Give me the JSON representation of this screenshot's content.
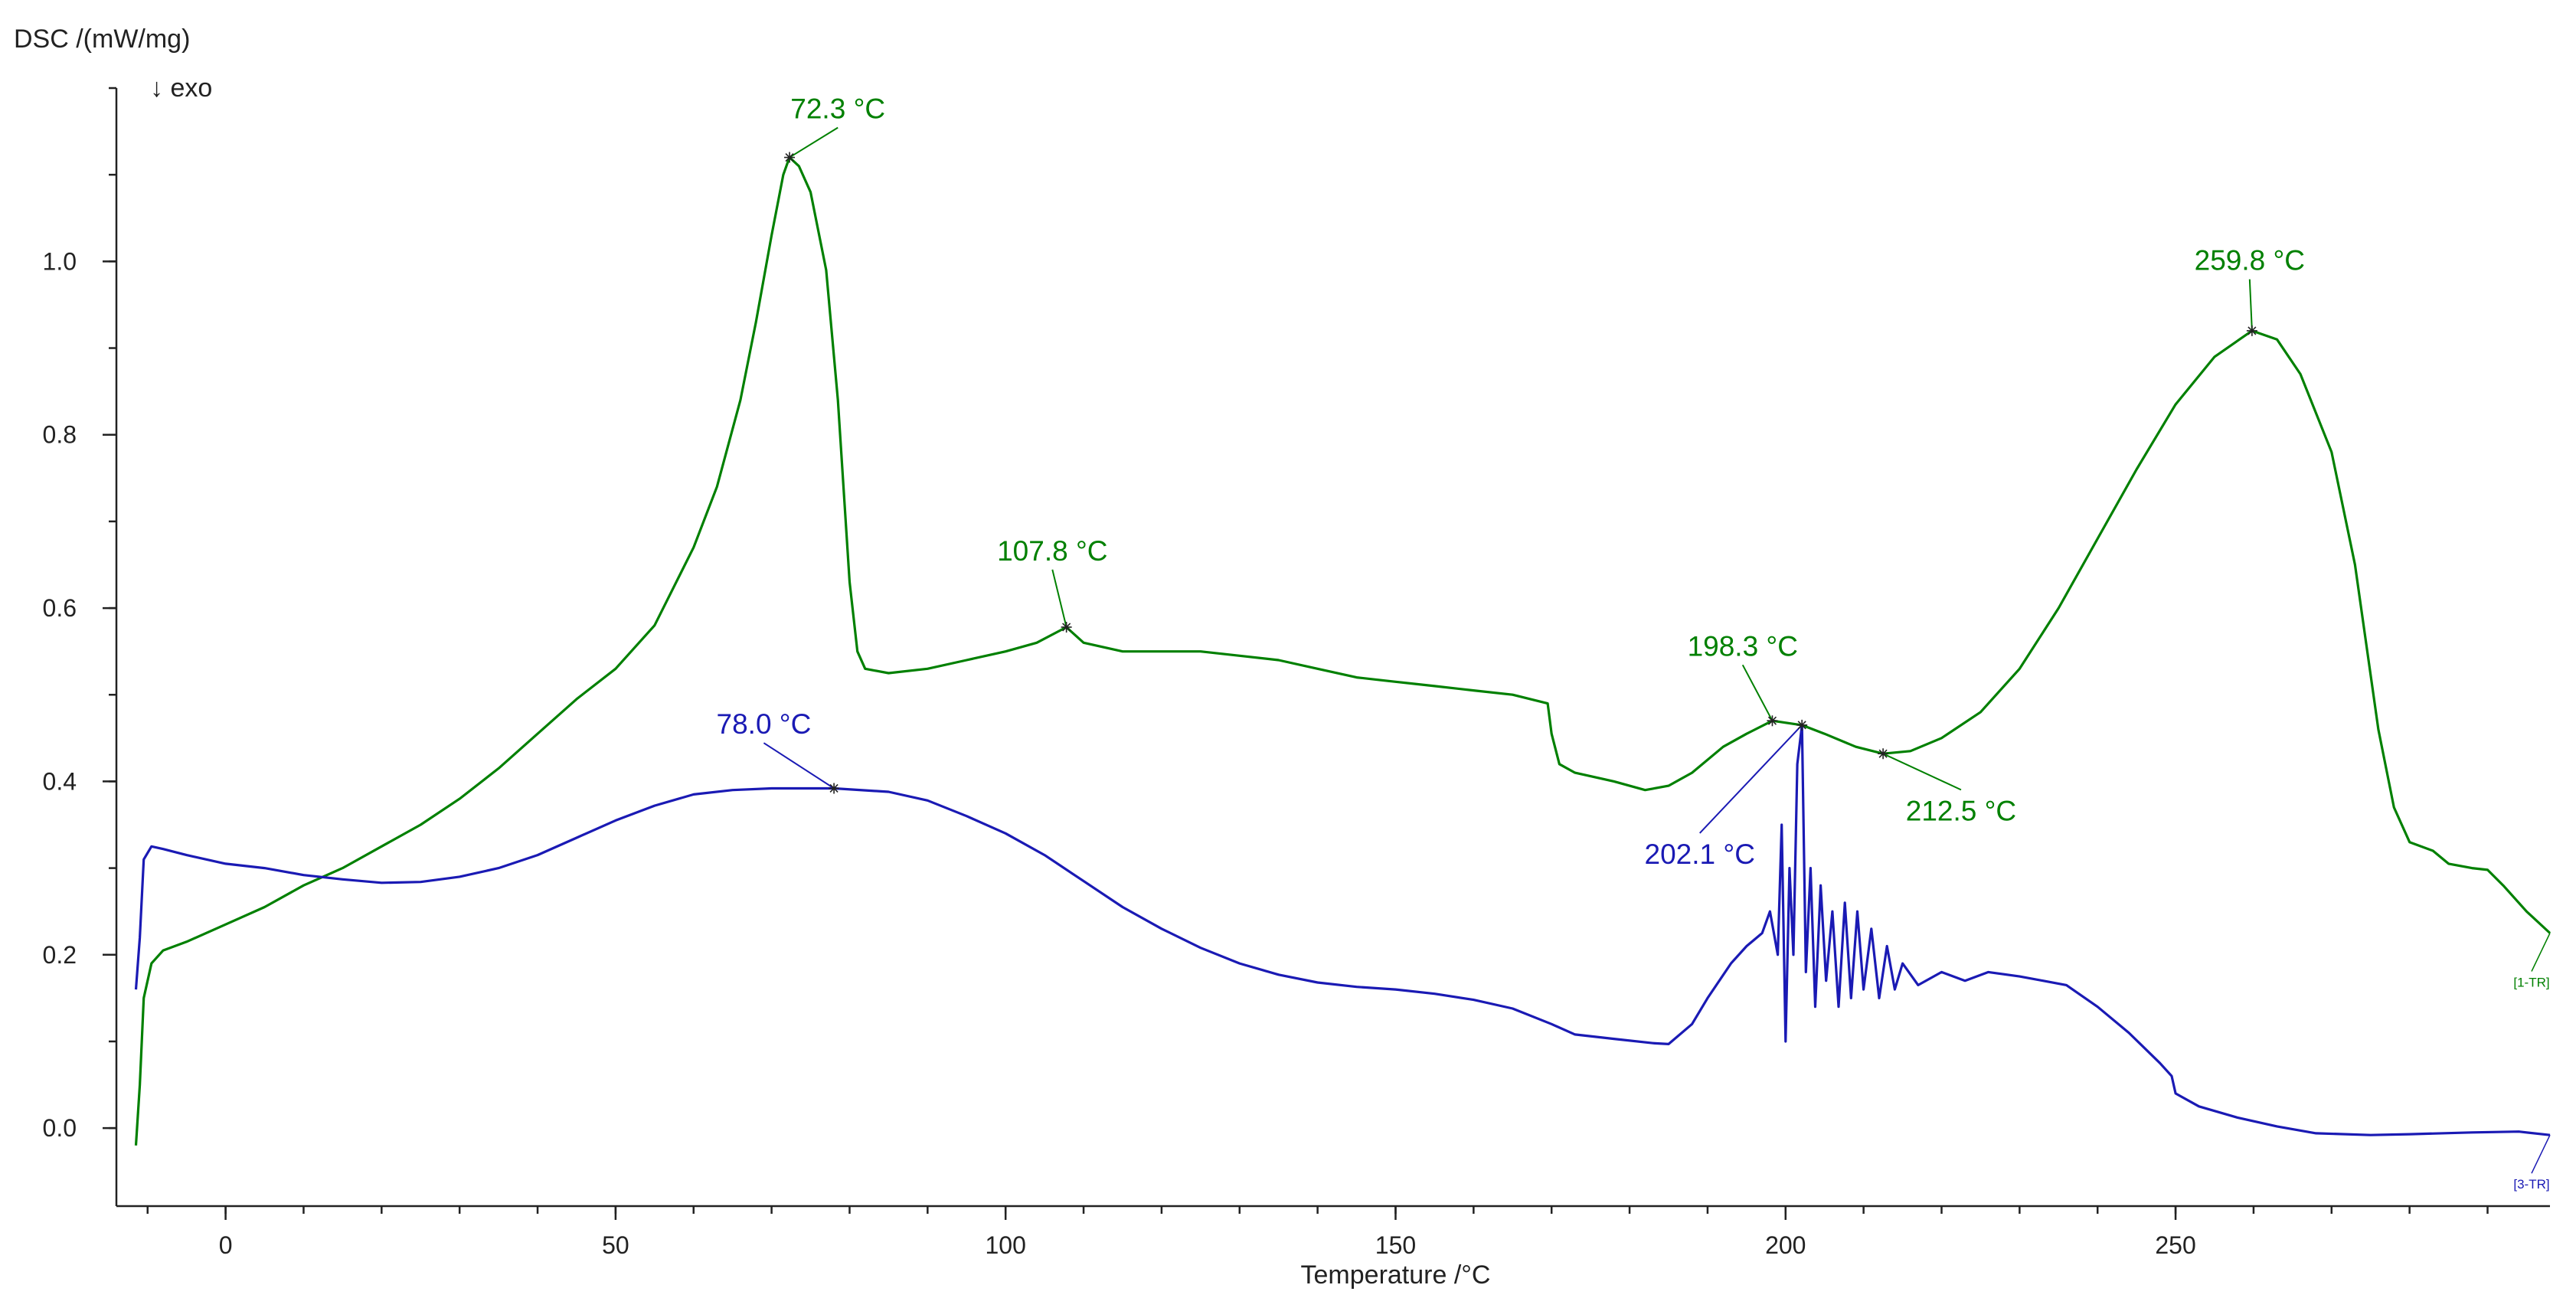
{
  "chart_data": {
    "type": "line",
    "ylabel": "DSC /(mW/mg)",
    "direction_note": "↓ exo",
    "xlabel": "Temperature /°C",
    "xlim": [
      -14,
      298
    ],
    "ylim": [
      -0.09,
      1.2
    ],
    "x_ticks_major": [
      0,
      50,
      100,
      150,
      200,
      250
    ],
    "x_ticks_minor_step": 10,
    "y_ticks_major": [
      0.0,
      0.2,
      0.4,
      0.6,
      0.8,
      1.0
    ],
    "y_ticks_minor_step": 0.1,
    "grid": false,
    "series": [
      {
        "name": "[1-TR]",
        "color": "#008000",
        "points": [
          [
            -11.5,
            -0.02
          ],
          [
            -11,
            0.05
          ],
          [
            -10.5,
            0.15
          ],
          [
            -9.5,
            0.19
          ],
          [
            -8,
            0.205
          ],
          [
            -5,
            0.215
          ],
          [
            0,
            0.235
          ],
          [
            5,
            0.255
          ],
          [
            10,
            0.28
          ],
          [
            15,
            0.3
          ],
          [
            20,
            0.325
          ],
          [
            25,
            0.35
          ],
          [
            30,
            0.38
          ],
          [
            35,
            0.415
          ],
          [
            40,
            0.455
          ],
          [
            45,
            0.495
          ],
          [
            50,
            0.53
          ],
          [
            55,
            0.58
          ],
          [
            60,
            0.67
          ],
          [
            63,
            0.74
          ],
          [
            66,
            0.84
          ],
          [
            68,
            0.93
          ],
          [
            70,
            1.03
          ],
          [
            71.5,
            1.1
          ],
          [
            72.3,
            1.12
          ],
          [
            73.5,
            1.11
          ],
          [
            75,
            1.08
          ],
          [
            77,
            0.99
          ],
          [
            78.5,
            0.84
          ],
          [
            80,
            0.63
          ],
          [
            81,
            0.55
          ],
          [
            82,
            0.53
          ],
          [
            85,
            0.525
          ],
          [
            90,
            0.53
          ],
          [
            95,
            0.54
          ],
          [
            100,
            0.55
          ],
          [
            104,
            0.56
          ],
          [
            107.8,
            0.578
          ],
          [
            110,
            0.56
          ],
          [
            115,
            0.55
          ],
          [
            120,
            0.55
          ],
          [
            125,
            0.55
          ],
          [
            130,
            0.545
          ],
          [
            135,
            0.54
          ],
          [
            140,
            0.53
          ],
          [
            145,
            0.52
          ],
          [
            150,
            0.515
          ],
          [
            155,
            0.51
          ],
          [
            160,
            0.505
          ],
          [
            165,
            0.5
          ],
          [
            169.5,
            0.49
          ],
          [
            170,
            0.455
          ],
          [
            171,
            0.42
          ],
          [
            173,
            0.41
          ],
          [
            178,
            0.4
          ],
          [
            182,
            0.39
          ],
          [
            185,
            0.395
          ],
          [
            188,
            0.41
          ],
          [
            192,
            0.44
          ],
          [
            195,
            0.455
          ],
          [
            198.3,
            0.47
          ],
          [
            202.1,
            0.465
          ],
          [
            205,
            0.455
          ],
          [
            209,
            0.44
          ],
          [
            212.5,
            0.432
          ],
          [
            216,
            0.435
          ],
          [
            220,
            0.45
          ],
          [
            225,
            0.48
          ],
          [
            230,
            0.53
          ],
          [
            235,
            0.6
          ],
          [
            240,
            0.68
          ],
          [
            245,
            0.76
          ],
          [
            250,
            0.835
          ],
          [
            255,
            0.89
          ],
          [
            259.8,
            0.92
          ],
          [
            263,
            0.91
          ],
          [
            266,
            0.87
          ],
          [
            270,
            0.78
          ],
          [
            273,
            0.65
          ],
          [
            276,
            0.46
          ],
          [
            278,
            0.37
          ],
          [
            280,
            0.33
          ],
          [
            283,
            0.32
          ],
          [
            285,
            0.305
          ],
          [
            288,
            0.3
          ],
          [
            290,
            0.298
          ],
          [
            292,
            0.28
          ],
          [
            295,
            0.25
          ],
          [
            298,
            0.225
          ]
        ]
      },
      {
        "name": "[3-TR]",
        "color": "#1a1ab4",
        "points": [
          [
            -11.5,
            0.16
          ],
          [
            -11,
            0.22
          ],
          [
            -10.5,
            0.31
          ],
          [
            -9.5,
            0.325
          ],
          [
            -8,
            0.322
          ],
          [
            -5,
            0.315
          ],
          [
            0,
            0.305
          ],
          [
            5,
            0.3
          ],
          [
            10,
            0.292
          ],
          [
            15,
            0.287
          ],
          [
            20,
            0.283
          ],
          [
            25,
            0.284
          ],
          [
            30,
            0.29
          ],
          [
            35,
            0.3
          ],
          [
            40,
            0.315
          ],
          [
            45,
            0.335
          ],
          [
            50,
            0.355
          ],
          [
            55,
            0.372
          ],
          [
            60,
            0.385
          ],
          [
            65,
            0.39
          ],
          [
            70,
            0.392
          ],
          [
            78,
            0.392
          ],
          [
            85,
            0.388
          ],
          [
            90,
            0.378
          ],
          [
            95,
            0.36
          ],
          [
            100,
            0.34
          ],
          [
            105,
            0.315
          ],
          [
            110,
            0.285
          ],
          [
            115,
            0.255
          ],
          [
            120,
            0.23
          ],
          [
            125,
            0.208
          ],
          [
            130,
            0.19
          ],
          [
            135,
            0.177
          ],
          [
            140,
            0.168
          ],
          [
            145,
            0.163
          ],
          [
            150,
            0.16
          ],
          [
            155,
            0.155
          ],
          [
            160,
            0.148
          ],
          [
            165,
            0.138
          ],
          [
            170,
            0.12
          ],
          [
            173,
            0.108
          ],
          [
            178,
            0.103
          ],
          [
            183,
            0.098
          ],
          [
            185,
            0.097
          ],
          [
            188,
            0.12
          ],
          [
            190,
            0.15
          ],
          [
            193,
            0.19
          ],
          [
            195,
            0.21
          ],
          [
            197,
            0.225
          ],
          [
            198,
            0.25
          ],
          [
            199,
            0.2
          ],
          [
            199.5,
            0.35
          ],
          [
            200,
            0.1
          ],
          [
            200.5,
            0.3
          ],
          [
            201,
            0.2
          ],
          [
            201.5,
            0.42
          ],
          [
            202.1,
            0.465
          ],
          [
            202.6,
            0.18
          ],
          [
            203.2,
            0.3
          ],
          [
            203.8,
            0.14
          ],
          [
            204.5,
            0.28
          ],
          [
            205.2,
            0.17
          ],
          [
            206,
            0.25
          ],
          [
            206.8,
            0.14
          ],
          [
            207.6,
            0.26
          ],
          [
            208.4,
            0.15
          ],
          [
            209.2,
            0.25
          ],
          [
            210,
            0.16
          ],
          [
            211,
            0.23
          ],
          [
            212,
            0.15
          ],
          [
            213,
            0.21
          ],
          [
            214,
            0.16
          ],
          [
            215,
            0.19
          ],
          [
            217,
            0.165
          ],
          [
            220,
            0.18
          ],
          [
            223,
            0.17
          ],
          [
            226,
            0.18
          ],
          [
            230,
            0.175
          ],
          [
            233,
            0.17
          ],
          [
            236,
            0.165
          ],
          [
            240,
            0.14
          ],
          [
            244,
            0.11
          ],
          [
            248,
            0.075
          ],
          [
            249.5,
            0.06
          ],
          [
            250,
            0.04
          ],
          [
            253,
            0.025
          ],
          [
            258,
            0.012
          ],
          [
            263,
            0.002
          ],
          [
            268,
            -0.006
          ],
          [
            275,
            -0.008
          ],
          [
            280,
            -0.007
          ],
          [
            288,
            -0.005
          ],
          [
            294,
            -0.004
          ],
          [
            298,
            -0.008
          ]
        ]
      }
    ],
    "annotations": [
      {
        "label": "72.3 °C",
        "series": 0,
        "x": 72.3,
        "y": 1.12,
        "label_x": 78.5,
        "label_y": 1.165
      },
      {
        "label": "107.8 °C",
        "series": 0,
        "x": 107.8,
        "y": 0.578,
        "label_x": 106,
        "label_y": 0.655
      },
      {
        "label": "198.3 °C",
        "series": 0,
        "x": 198.3,
        "y": 0.47,
        "label_x": 194.5,
        "label_y": 0.545
      },
      {
        "label": "212.5 °C",
        "series": 0,
        "x": 212.5,
        "y": 0.432,
        "label_x": 222.5,
        "label_y": 0.355
      },
      {
        "label": "259.8 °C",
        "series": 0,
        "x": 259.8,
        "y": 0.92,
        "label_x": 259.5,
        "label_y": 0.99
      },
      {
        "label": "78.0 °C",
        "series": 1,
        "x": 78.0,
        "y": 0.392,
        "label_x": 69,
        "label_y": 0.455
      },
      {
        "label": "202.1 °C",
        "series": 1,
        "x": 202.1,
        "y": 0.465,
        "label_x": 189,
        "label_y": 0.305
      }
    ]
  }
}
